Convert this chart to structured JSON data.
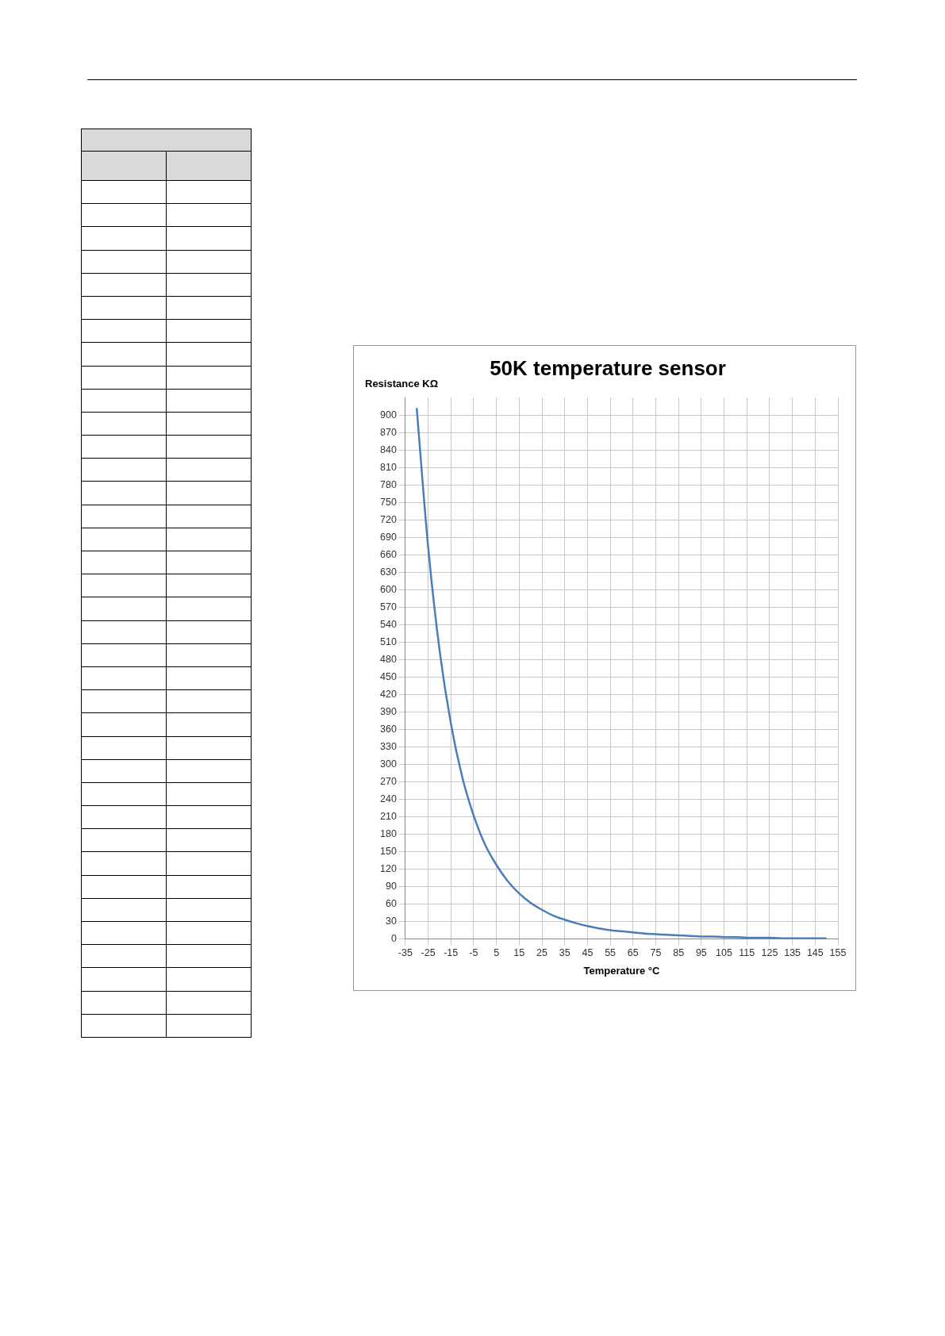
{
  "chart_data": {
    "type": "line",
    "title": "50K temperature sensor",
    "xlabel": "Temperature °C",
    "ylabel": "Resistance KΩ",
    "x": [
      -30,
      -25,
      -20,
      -15,
      -10,
      -5,
      0,
      5,
      10,
      15,
      20,
      25,
      30,
      35,
      40,
      45,
      50,
      55,
      60,
      65,
      70,
      75,
      80,
      85,
      90,
      95,
      100,
      105,
      110,
      115,
      120,
      125,
      130,
      135,
      140,
      145,
      150
    ],
    "series": [
      {
        "color": "#4a7ebb",
        "values": [
          912,
          674,
          497,
          370,
          278,
          212,
          162,
          127,
          99,
          78,
          62,
          50,
          40,
          33,
          27,
          22,
          18,
          15,
          13,
          11,
          9,
          8,
          7,
          6,
          5,
          4,
          4,
          3,
          3,
          2,
          2,
          2,
          1,
          1,
          1,
          1,
          1
        ]
      }
    ],
    "xlim": [
      -35,
      155
    ],
    "xticks": [
      -35,
      -25,
      -15,
      -5,
      5,
      15,
      25,
      35,
      45,
      55,
      65,
      75,
      85,
      95,
      105,
      115,
      125,
      135,
      145,
      155
    ],
    "ylim": [
      0,
      930
    ],
    "yticks": [
      0,
      30,
      60,
      90,
      120,
      150,
      180,
      210,
      240,
      270,
      300,
      330,
      360,
      390,
      420,
      450,
      480,
      510,
      540,
      570,
      600,
      630,
      660,
      690,
      720,
      750,
      780,
      810,
      840,
      870,
      900
    ],
    "grid": true,
    "legend": false,
    "marker": "none",
    "line_style": "solid"
  }
}
